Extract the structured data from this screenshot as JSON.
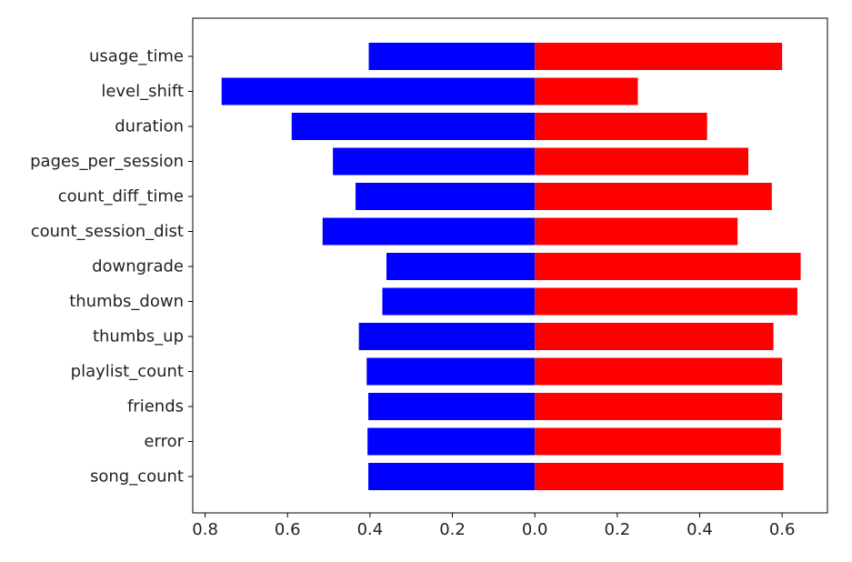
{
  "chart_data": {
    "type": "bar",
    "orientation": "horizontal",
    "stacked": "diverging",
    "title": "",
    "xlabel": "",
    "ylabel": "",
    "grid": false,
    "categories": [
      "usage_time",
      "level_shift",
      "duration",
      "pages_per_session",
      "count_diff_time",
      "count_session_dist",
      "downgrade",
      "thumbs_down",
      "thumbs_up",
      "playlist_count",
      "friends",
      "error",
      "song_count"
    ],
    "series": [
      {
        "color": "#0000ff",
        "values": [
          -0.403,
          -0.76,
          -0.59,
          -0.49,
          -0.435,
          -0.515,
          -0.36,
          -0.37,
          -0.427,
          -0.408,
          -0.404,
          -0.406,
          -0.404
        ]
      },
      {
        "color": "#ff0000",
        "values": [
          0.6,
          0.25,
          0.418,
          0.518,
          0.575,
          0.492,
          0.645,
          0.637,
          0.579,
          0.6,
          0.6,
          0.597,
          0.603
        ]
      }
    ],
    "xlim": [
      -0.83,
      0.71
    ],
    "xticks": [
      -0.8,
      -0.6,
      -0.4,
      -0.2,
      0.0,
      0.2,
      0.4,
      0.6
    ],
    "xtick_labels": [
      "0.8",
      "0.6",
      "0.4",
      "0.2",
      "0.0",
      "0.2",
      "0.4",
      "0.6"
    ]
  }
}
